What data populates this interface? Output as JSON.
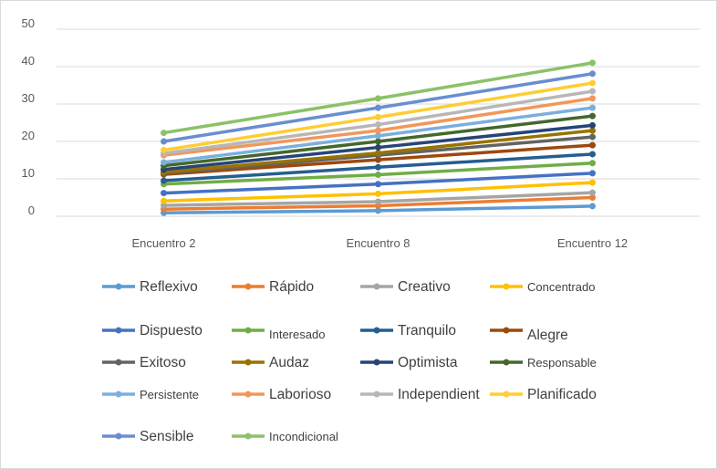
{
  "chart_data": {
    "type": "line",
    "categories": [
      "Encuentro 2",
      "Encuentro 8",
      "Encuentro 12"
    ],
    "ylim": [
      0,
      50
    ],
    "yticks": [
      0,
      10,
      20,
      30,
      40,
      50
    ],
    "grid": true,
    "legend_position": "bottom",
    "series": [
      {
        "name": "Reflexivo",
        "color": "#5B9BD5",
        "values": [
          0.9,
          1.5,
          2.7
        ]
      },
      {
        "name": "Rápido",
        "color": "#ED7D31",
        "values": [
          1.9,
          2.8,
          5.0
        ]
      },
      {
        "name": "Creativo",
        "color": "#A5A5A5",
        "values": [
          2.9,
          3.9,
          6.3
        ]
      },
      {
        "name": "Concentrado",
        "color": "#FFC000",
        "values": [
          4.1,
          6.0,
          9.0
        ]
      },
      {
        "name": "Dispuesto",
        "color": "#4472C4",
        "values": [
          6.2,
          8.6,
          11.5
        ]
      },
      {
        "name": "Interesado",
        "color": "#70AD47",
        "values": [
          8.6,
          11.1,
          14.2
        ]
      },
      {
        "name": "Tranquilo",
        "color": "#255E91",
        "values": [
          9.5,
          13.1,
          16.6
        ]
      },
      {
        "name": "Alegre",
        "color": "#9E480E",
        "values": [
          11.2,
          15.1,
          19.0
        ]
      },
      {
        "name": "Exitoso",
        "color": "#636363",
        "values": [
          11.5,
          16.3,
          21.2
        ]
      },
      {
        "name": "Audaz",
        "color": "#997300",
        "values": [
          11.8,
          16.9,
          22.9
        ]
      },
      {
        "name": "Optimista",
        "color": "#264478",
        "values": [
          12.5,
          18.4,
          24.3
        ]
      },
      {
        "name": "Responsable",
        "color": "#43682B",
        "values": [
          13.5,
          20.0,
          26.8
        ]
      },
      {
        "name": "Persistente",
        "color": "#7CAFDD",
        "values": [
          14.4,
          21.5,
          29.0
        ]
      },
      {
        "name": "Laborioso",
        "color": "#F1975A",
        "values": [
          16.3,
          22.9,
          31.5
        ]
      },
      {
        "name": "Independient",
        "color": "#B7B7B7",
        "values": [
          16.8,
          24.5,
          33.4
        ]
      },
      {
        "name": "Planificado",
        "color": "#FFCD33",
        "values": [
          17.7,
          26.5,
          35.6
        ]
      },
      {
        "name": "Sensible",
        "color": "#698ED0",
        "values": [
          20.0,
          29.0,
          38.1
        ]
      },
      {
        "name": "Incondicional",
        "color": "#8CC168",
        "values": [
          22.3,
          31.5,
          41.0
        ]
      }
    ]
  }
}
